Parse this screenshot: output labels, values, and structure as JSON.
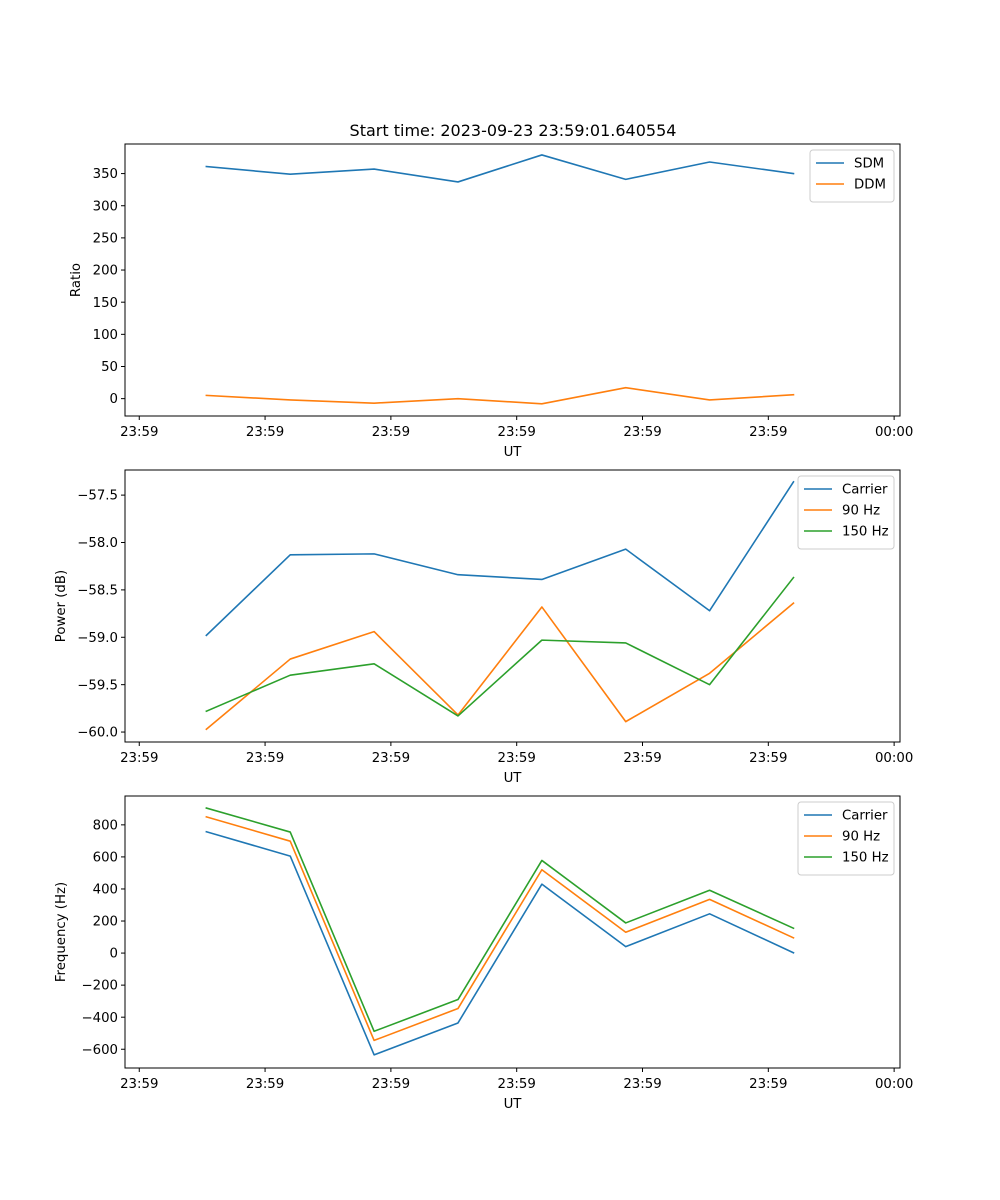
{
  "figure_title": "Start time: 2023-09-23 23:59:01.640554",
  "chart_data": [
    {
      "type": "line",
      "title": "Start time: 2023-09-23 23:59:01.640554",
      "xlabel": "UT",
      "ylabel": "Ratio",
      "x": [
        1,
        2,
        3,
        4,
        5,
        6,
        7,
        8
      ],
      "xlim": [
        0.03,
        9.27
      ],
      "ylim": [
        -27,
        396
      ],
      "yticks": [
        0,
        50,
        100,
        150,
        200,
        250,
        300,
        350
      ],
      "ytick_labels": [
        "0",
        "50",
        "100",
        "150",
        "200",
        "250",
        "300",
        "350"
      ],
      "xticks": [
        0.2,
        1.7,
        3.2,
        4.7,
        6.2,
        7.7,
        9.2
      ],
      "xtick_labels": [
        "23:59",
        "23:59",
        "23:59",
        "23:59",
        "23:59",
        "23:59",
        "00:00"
      ],
      "legend_loc": "upper right",
      "series": [
        {
          "name": "SDM",
          "color": "#1f77b4",
          "values": [
            361,
            349,
            357,
            337,
            379,
            341,
            368,
            350
          ]
        },
        {
          "name": "DDM",
          "color": "#ff7f0e",
          "values": [
            5,
            -2,
            -7,
            0,
            -8,
            17,
            -2,
            6
          ]
        }
      ]
    },
    {
      "type": "line",
      "title": "",
      "xlabel": "UT",
      "ylabel": "Power (dB)",
      "x": [
        1,
        2,
        3,
        4,
        5,
        6,
        7,
        8
      ],
      "xlim": [
        0.03,
        9.27
      ],
      "ylim": [
        -60.105,
        -57.235
      ],
      "yticks": [
        -60.0,
        -59.5,
        -59.0,
        -58.5,
        -58.0,
        -57.5
      ],
      "ytick_labels": [
        "−60.0",
        "−59.5",
        "−59.0",
        "−58.5",
        "−58.0",
        "−57.5"
      ],
      "xticks": [
        0.2,
        1.7,
        3.2,
        4.7,
        6.2,
        7.7,
        9.2
      ],
      "xtick_labels": [
        "23:59",
        "23:59",
        "23:59",
        "23:59",
        "23:59",
        "23:59",
        "00:00"
      ],
      "legend_loc": "upper right",
      "series": [
        {
          "name": "Carrier",
          "color": "#1f77b4",
          "values": [
            -58.98,
            -58.13,
            -58.12,
            -58.34,
            -58.39,
            -58.07,
            -58.72,
            -57.36
          ]
        },
        {
          "name": "90 Hz",
          "color": "#ff7f0e",
          "values": [
            -59.97,
            -59.23,
            -58.94,
            -59.82,
            -58.68,
            -59.89,
            -59.38,
            -58.64
          ]
        },
        {
          "name": "150 Hz",
          "color": "#2ca02c",
          "values": [
            -59.78,
            -59.4,
            -59.28,
            -59.83,
            -59.03,
            -59.06,
            -59.5,
            -58.37
          ]
        }
      ]
    },
    {
      "type": "line",
      "title": "",
      "xlabel": "UT",
      "ylabel": "Frequency (Hz)",
      "x": [
        1,
        2,
        3,
        4,
        5,
        6,
        7,
        8
      ],
      "xlim": [
        0.03,
        9.27
      ],
      "ylim": [
        -717,
        980
      ],
      "yticks": [
        -600,
        -400,
        -200,
        0,
        200,
        400,
        600,
        800
      ],
      "ytick_labels": [
        "−600",
        "−400",
        "−200",
        "0",
        "200",
        "400",
        "600",
        "800"
      ],
      "xticks": [
        0.2,
        1.7,
        3.2,
        4.7,
        6.2,
        7.7,
        9.2
      ],
      "xtick_labels": [
        "23:59",
        "23:59",
        "23:59",
        "23:59",
        "23:59",
        "23:59",
        "00:00"
      ],
      "legend_loc": "upper right",
      "series": [
        {
          "name": "Carrier",
          "color": "#1f77b4",
          "values": [
            757,
            605,
            -635,
            -436,
            430,
            40,
            245,
            2
          ]
        },
        {
          "name": "90 Hz",
          "color": "#ff7f0e",
          "values": [
            850,
            698,
            -545,
            -346,
            520,
            130,
            335,
            95
          ]
        },
        {
          "name": "150 Hz",
          "color": "#2ca02c",
          "values": [
            905,
            755,
            -488,
            -290,
            578,
            188,
            392,
            155
          ]
        }
      ]
    }
  ]
}
